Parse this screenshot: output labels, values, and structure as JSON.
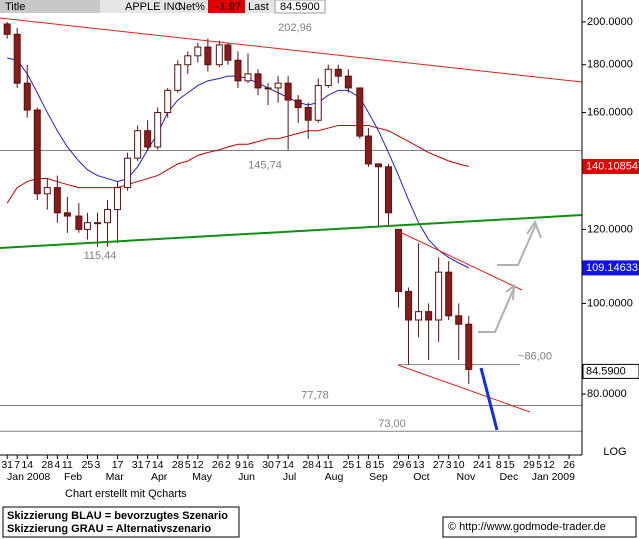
{
  "chart_data": {
    "type": "candlestick",
    "header": {
      "title_label": "Title",
      "name": "APPLE INC",
      "net_label": "Net%",
      "net": -1.97,
      "last_label": "Last",
      "last": {
        "value": 84.59,
        "label": "84.5900"
      }
    },
    "log_scale": true,
    "scale_label": "LOG",
    "xlim": [
      "2007-12-26",
      "2009-02-04"
    ],
    "ylim": [
      68.85,
      211.1
    ],
    "yticks": [
      {
        "value": 200,
        "label": "200.0000"
      },
      {
        "value": 180,
        "label": "180.0000"
      },
      {
        "value": 160,
        "label": "160.0000"
      },
      {
        "value": 120,
        "label": "120.0000"
      },
      {
        "value": 100,
        "label": "100.0000"
      },
      {
        "value": 80,
        "label": "80.0000"
      }
    ],
    "xticks": [
      {
        "value": "2007-12-31",
        "label": "31"
      },
      {
        "value": "2008-01-07",
        "label": "7"
      },
      {
        "value": "2008-01-14",
        "label": "14"
      },
      {
        "value": "2008-01-28",
        "label": "28"
      },
      {
        "value": "2008-02-04",
        "label": "4"
      },
      {
        "value": "2008-02-11",
        "label": "11"
      },
      {
        "value": "2008-02-25",
        "label": "25"
      },
      {
        "value": "2008-03-03",
        "label": "3"
      },
      {
        "value": "2008-03-17",
        "label": "17"
      },
      {
        "value": "2008-03-31",
        "label": "31"
      },
      {
        "value": "2008-04-07",
        "label": "7"
      },
      {
        "value": "2008-04-14",
        "label": "14"
      },
      {
        "value": "2008-04-28",
        "label": "28"
      },
      {
        "value": "2008-05-05",
        "label": "5"
      },
      {
        "value": "2008-05-12",
        "label": "12"
      },
      {
        "value": "2008-05-26",
        "label": "26"
      },
      {
        "value": "2008-06-02",
        "label": "2"
      },
      {
        "value": "2008-06-09",
        "label": "9"
      },
      {
        "value": "2008-06-16",
        "label": "16"
      },
      {
        "value": "2008-06-30",
        "label": "30"
      },
      {
        "value": "2008-07-07",
        "label": "7"
      },
      {
        "value": "2008-07-14",
        "label": "14"
      },
      {
        "value": "2008-07-28",
        "label": "28"
      },
      {
        "value": "2008-08-04",
        "label": "4"
      },
      {
        "value": "2008-08-11",
        "label": "11"
      },
      {
        "value": "2008-08-25",
        "label": "25"
      },
      {
        "value": "2008-09-01",
        "label": "1"
      },
      {
        "value": "2008-09-08",
        "label": "8"
      },
      {
        "value": "2008-09-15",
        "label": "15"
      },
      {
        "value": "2008-09-29",
        "label": "29"
      },
      {
        "value": "2008-10-06",
        "label": "6"
      },
      {
        "value": "2008-10-13",
        "label": "13"
      },
      {
        "value": "2008-10-27",
        "label": "27"
      },
      {
        "value": "2008-11-03",
        "label": "3"
      },
      {
        "value": "2008-11-10",
        "label": "10"
      },
      {
        "value": "2008-11-24",
        "label": "24"
      },
      {
        "value": "2008-12-01",
        "label": "1"
      },
      {
        "value": "2008-12-08",
        "label": "8"
      },
      {
        "value": "2008-12-15",
        "label": "15"
      },
      {
        "value": "2008-12-29",
        "label": "29"
      },
      {
        "value": "2009-01-05",
        "label": "5"
      },
      {
        "value": "2009-01-12",
        "label": "12"
      },
      {
        "value": "2009-01-26",
        "label": "26"
      }
    ],
    "months": [
      "Jan 2008",
      "Feb",
      "Mar",
      "Apr",
      "May",
      "Jun",
      "Jul",
      "Aug",
      "Sep",
      "Oct",
      "Nov",
      "Dec",
      "Jan 2009"
    ],
    "x": [
      "2007-12-31",
      "2008-01-07",
      "2008-01-14",
      "2008-01-21",
      "2008-01-28",
      "2008-02-04",
      "2008-02-11",
      "2008-02-19",
      "2008-02-25",
      "2008-03-03",
      "2008-03-10",
      "2008-03-17",
      "2008-03-24",
      "2008-03-31",
      "2008-04-07",
      "2008-04-14",
      "2008-04-21",
      "2008-04-28",
      "2008-05-05",
      "2008-05-12",
      "2008-05-19",
      "2008-05-27",
      "2008-06-02",
      "2008-06-09",
      "2008-06-16",
      "2008-06-23",
      "2008-06-30",
      "2008-07-07",
      "2008-07-14",
      "2008-07-21",
      "2008-07-28",
      "2008-08-04",
      "2008-08-11",
      "2008-08-18",
      "2008-08-25",
      "2008-09-02",
      "2008-09-08",
      "2008-09-15",
      "2008-09-22",
      "2008-09-29",
      "2008-10-06",
      "2008-10-13",
      "2008-10-20",
      "2008-10-27",
      "2008-11-03",
      "2008-11-10",
      "2008-11-17"
    ],
    "open": [
      199,
      194,
      172,
      161,
      131,
      133,
      125,
      124,
      120,
      122,
      122,
      126,
      133,
      143,
      153,
      147,
      160,
      169,
      180,
      184,
      188,
      180,
      189,
      182,
      173,
      176,
      170,
      170,
      172,
      165,
      162,
      157,
      171,
      178,
      175,
      170,
      151,
      141,
      140,
      120,
      103,
      96,
      98,
      96,
      108,
      97,
      95
    ],
    "high": [
      200,
      197,
      180,
      162,
      136,
      137,
      130,
      128,
      125,
      125,
      129,
      135,
      145,
      155,
      157,
      162,
      170,
      182,
      186,
      190,
      192,
      191,
      190,
      186,
      185,
      178,
      172,
      175,
      175,
      167,
      164,
      174,
      180,
      180,
      178,
      170,
      154,
      141,
      141,
      120,
      104,
      116,
      100,
      112,
      111,
      100,
      97
    ],
    "low": [
      192,
      170,
      158,
      129,
      126,
      122,
      119,
      119,
      117,
      115,
      115,
      116,
      132,
      142,
      146,
      146,
      158,
      168,
      176,
      181,
      177,
      179,
      180,
      170,
      172,
      167,
      163,
      164,
      146,
      156,
      150,
      156,
      170,
      172,
      168,
      150,
      140,
      121,
      121,
      99,
      86,
      92,
      87,
      91,
      96,
      87,
      82
    ],
    "close": [
      194,
      172,
      161,
      131,
      133,
      125,
      124,
      120,
      122,
      122,
      126,
      133,
      143,
      153,
      147,
      160,
      169,
      180,
      184,
      188,
      180,
      189,
      182,
      173,
      176,
      170,
      170,
      172,
      165,
      162,
      157,
      171,
      178,
      175,
      170,
      151,
      141,
      140,
      125,
      103,
      96,
      98,
      96,
      108,
      97,
      95,
      85
    ],
    "up_color": "#ffffff",
    "down_color": "#8b1a1a",
    "outline_color": "#5a1010",
    "series": [
      {
        "color": "#2020c0",
        "values": [
          183,
          182,
          176,
          168,
          160,
          153,
          147,
          142,
          139,
          137,
          136,
          135,
          136,
          140,
          146,
          152,
          160,
          165,
          168,
          171,
          173,
          174,
          175,
          175,
          174,
          172,
          170,
          168,
          166,
          164,
          163,
          164,
          167,
          169,
          169,
          166,
          160,
          153,
          145,
          137,
          129,
          122,
          117,
          114,
          112,
          110.5,
          109.15
        ]
      },
      {
        "color": "#c00000",
        "values": [
          128,
          133,
          135,
          136,
          136,
          135,
          134,
          133,
          133,
          133,
          133,
          133,
          134,
          135,
          136,
          137,
          139,
          141,
          142,
          144,
          145,
          146,
          147,
          148,
          148,
          149,
          150,
          150,
          151,
          152,
          153,
          153,
          154,
          155,
          155,
          155,
          155,
          154,
          153,
          151,
          149,
          147,
          145,
          143.5,
          142,
          141,
          140.1
        ]
      }
    ],
    "levels": [
      {
        "value": 202.96,
        "label": "202,96",
        "line": false
      },
      {
        "value": 145.74,
        "label": "145,74",
        "line": true
      },
      {
        "value": 115.44,
        "label": "115,44",
        "line": false
      },
      {
        "value": 77.78,
        "label": "77,78",
        "line": true
      },
      {
        "value": 73.0,
        "label": "73,00",
        "line": true
      },
      {
        "value": 86.0,
        "label": "~86,00",
        "line": true
      }
    ],
    "price_tags": [
      {
        "value": 140.10854,
        "color": "#e00000"
      },
      {
        "value": 109.14633,
        "color": "#1010ff"
      }
    ],
    "credit": "Chart erstellt mit Qcharts",
    "legend_lines": [
      "Skizzierung BLAU = bevorzugtes Szenario",
      "Skizzierung GRAU = Alternativszenario"
    ],
    "source": "© http://www.godmode-trader.de"
  }
}
